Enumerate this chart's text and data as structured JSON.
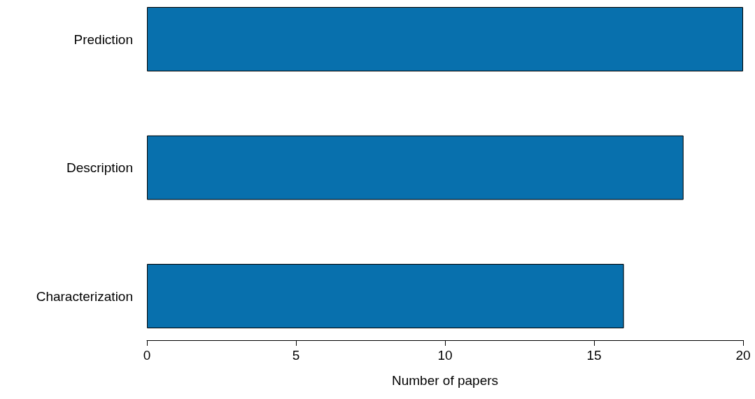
{
  "chart_data": {
    "type": "bar",
    "orientation": "horizontal",
    "xlabel": "Number of papers",
    "categories": [
      "Prediction",
      "Description",
      "Characterization"
    ],
    "values": [
      20,
      18,
      16
    ],
    "color": "#0870ad",
    "xlim": [
      0,
      20
    ],
    "xticks": [
      0,
      5,
      10,
      15,
      20
    ]
  }
}
